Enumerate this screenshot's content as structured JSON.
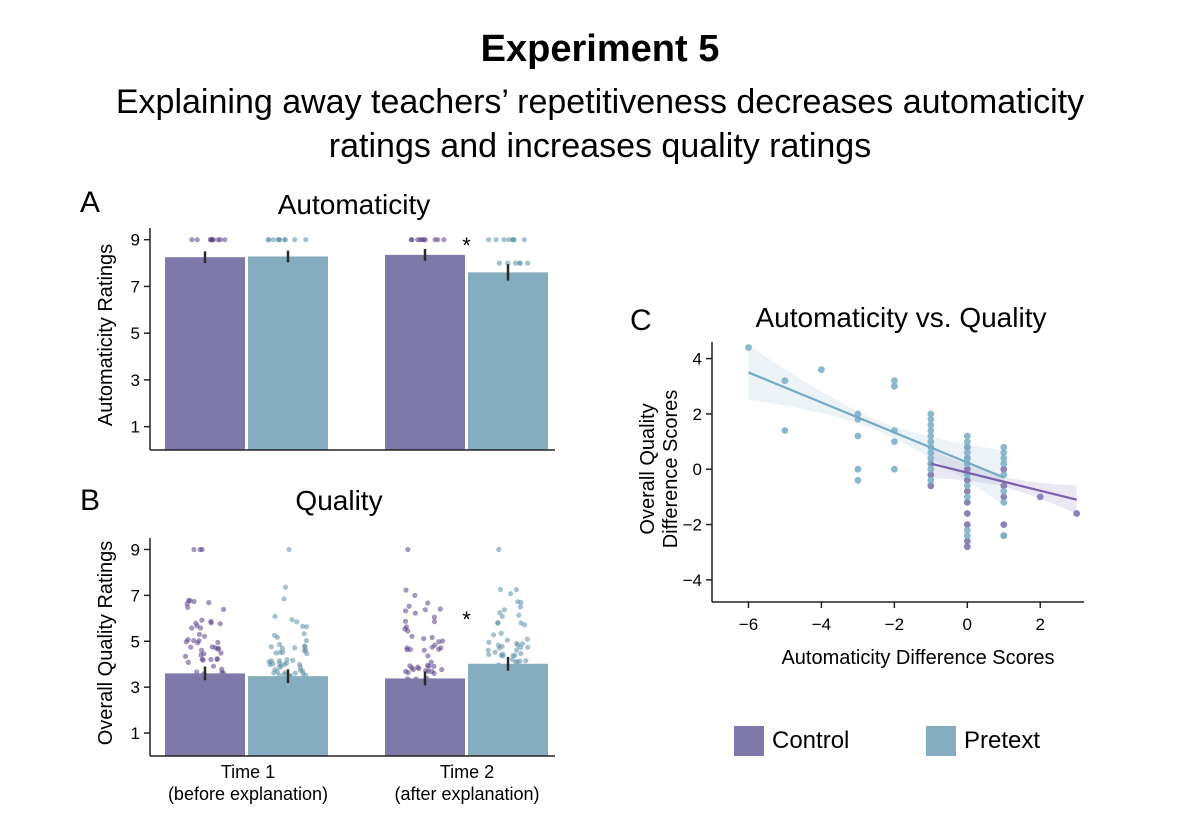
{
  "title": "Experiment 5",
  "subtitle_lines": [
    "Explaining away teachers’ repetitiveness decreases automaticity",
    "ratings and increases quality ratings"
  ],
  "colors": {
    "control": "#7f79a9",
    "pretext": "#86adbf",
    "control_dot": "#5a3f86",
    "pretext_dot": "#5f8fa6",
    "control_line": "#7b5fad",
    "pretext_line": "#74a9c4",
    "axis": "#222222"
  },
  "legend": [
    {
      "label": "Control",
      "color": "#7f79a9"
    },
    {
      "label": "Pretext",
      "color": "#86adbf"
    }
  ],
  "chart_data": [
    {
      "panel": "A",
      "type": "bar",
      "title": "Automaticity",
      "ylabel": "Automaticity Ratings",
      "ylim": [
        0,
        9.5
      ],
      "yticks": [
        1,
        3,
        5,
        7,
        9
      ],
      "categories": [
        "Time 1",
        "Time 2"
      ],
      "series": [
        {
          "name": "Control",
          "values": [
            8.25,
            8.35
          ],
          "errors": [
            0.25,
            0.25
          ]
        },
        {
          "name": "Pretext",
          "values": [
            8.28,
            7.6
          ],
          "errors": [
            0.25,
            0.35
          ]
        }
      ],
      "significance": [
        {
          "category": "Time 2",
          "label": "*"
        }
      ]
    },
    {
      "panel": "B",
      "type": "bar",
      "title": "Quality",
      "ylabel": "Overall Quality Ratings",
      "ylim": [
        0,
        9.5
      ],
      "yticks": [
        1,
        3,
        5,
        7,
        9
      ],
      "categories": [
        "Time 1",
        "Time 2"
      ],
      "category_sublabels": [
        "(before explanation)",
        "(after explanation)"
      ],
      "series": [
        {
          "name": "Control",
          "values": [
            3.6,
            3.38
          ],
          "errors": [
            0.3,
            0.3
          ]
        },
        {
          "name": "Pretext",
          "values": [
            3.48,
            4.02
          ],
          "errors": [
            0.3,
            0.3
          ]
        }
      ],
      "significance": [
        {
          "category": "Time 2",
          "label": "*"
        }
      ]
    },
    {
      "panel": "C",
      "type": "scatter",
      "title": "Automaticity vs. Quality",
      "xlabel": "Automaticity Difference Scores",
      "ylabel": "Overall Quality Difference Scores",
      "xlim": [
        -7,
        3.2
      ],
      "ylim": [
        -4.8,
        4.6
      ],
      "xticks": [
        -6,
        -4,
        -2,
        0,
        2
      ],
      "yticks": [
        -4,
        -2,
        0,
        2,
        4
      ],
      "series": [
        {
          "name": "Control",
          "points": [
            [
              -1,
              0.2
            ],
            [
              -1,
              -0.2
            ],
            [
              -1,
              -0.6
            ],
            [
              0,
              0
            ],
            [
              0,
              -0.4
            ],
            [
              0,
              -0.8
            ],
            [
              0,
              -1.2
            ],
            [
              0,
              -1.6
            ],
            [
              0,
              -2
            ],
            [
              0,
              -2.6
            ],
            [
              0,
              -2.8
            ],
            [
              0,
              0.4
            ],
            [
              0,
              0.8
            ],
            [
              1,
              0
            ],
            [
              1,
              -0.6
            ],
            [
              1,
              -1
            ],
            [
              1,
              -2
            ],
            [
              1,
              -2.4
            ],
            [
              2,
              -1
            ],
            [
              3,
              -1.6
            ]
          ],
          "fit": {
            "x": [
              -1,
              3
            ],
            "y": [
              0.2,
              -1.1
            ]
          }
        },
        {
          "name": "Pretext",
          "points": [
            [
              -6,
              4.4
            ],
            [
              -5,
              3.2
            ],
            [
              -5,
              1.4
            ],
            [
              -4,
              3.6
            ],
            [
              -3,
              2
            ],
            [
              -3,
              1.8
            ],
            [
              -3,
              1.2
            ],
            [
              -3,
              0
            ],
            [
              -3,
              -0.4
            ],
            [
              -2,
              3.2
            ],
            [
              -2,
              3
            ],
            [
              -2,
              1.4
            ],
            [
              -2,
              1
            ],
            [
              -2,
              0
            ],
            [
              -1,
              2
            ],
            [
              -1,
              1.8
            ],
            [
              -1,
              1.6
            ],
            [
              -1,
              1.4
            ],
            [
              -1,
              1.2
            ],
            [
              -1,
              1
            ],
            [
              -1,
              0.8
            ],
            [
              -1,
              0.6
            ],
            [
              -1,
              0.4
            ],
            [
              -1,
              0.2
            ],
            [
              -1,
              0
            ],
            [
              -1,
              -0.4
            ],
            [
              0,
              1.2
            ],
            [
              0,
              1
            ],
            [
              0,
              0.8
            ],
            [
              0,
              0.6
            ],
            [
              0,
              0.4
            ],
            [
              0,
              0.2
            ],
            [
              0,
              -0.2
            ],
            [
              0,
              -0.6
            ],
            [
              0,
              -1
            ],
            [
              0,
              -2.2
            ],
            [
              0,
              -2.4
            ],
            [
              1,
              0.8
            ],
            [
              1,
              0.6
            ],
            [
              1,
              0.4
            ],
            [
              1,
              0.2
            ],
            [
              1,
              -0.2
            ],
            [
              1,
              -0.8
            ],
            [
              1,
              -1.2
            ],
            [
              1,
              -2.4
            ]
          ],
          "fit": {
            "x": [
              -6,
              1
            ],
            "y": [
              3.5,
              -0.3
            ]
          }
        }
      ]
    }
  ],
  "panel_labels": [
    "A",
    "B",
    "C"
  ]
}
